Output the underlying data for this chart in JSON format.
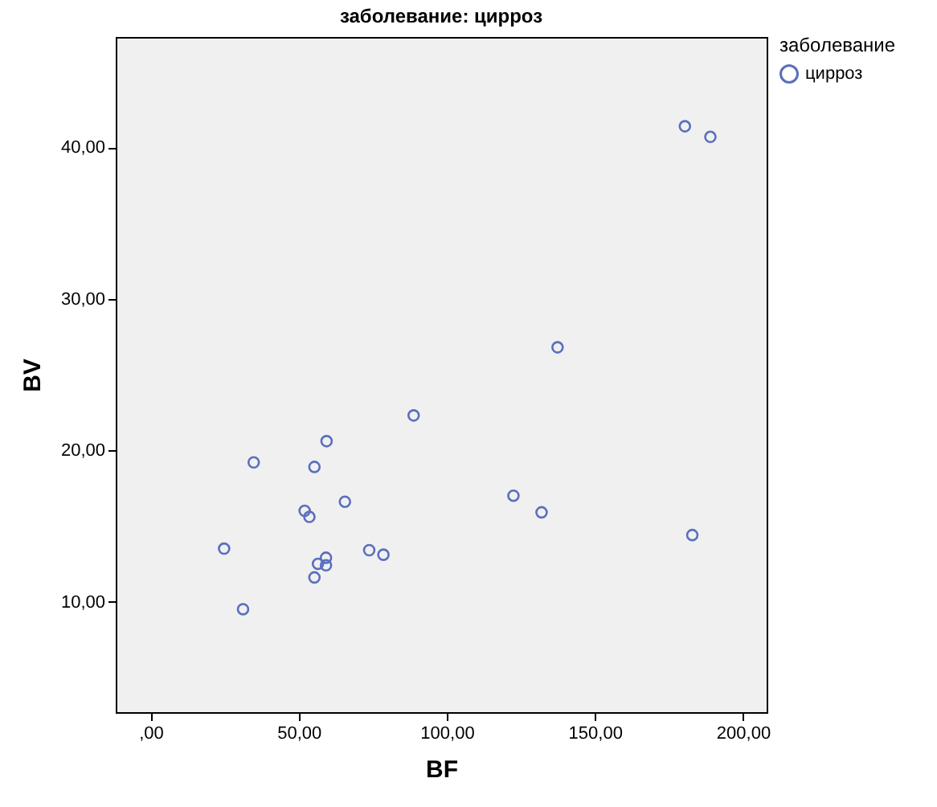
{
  "chart_data": {
    "type": "scatter",
    "title": "заболевание: цирроз",
    "xlabel": "BF",
    "ylabel": "BV",
    "legend_title": "заболевание",
    "legend": "top right",
    "marker": "circle",
    "grid": false,
    "xlim": [
      -11.8,
      208
    ],
    "ylim": [
      2.7,
      47.3
    ],
    "xticks": [
      {
        "value": 0,
        "label": ",00"
      },
      {
        "value": 50,
        "label": "50,00"
      },
      {
        "value": 100,
        "label": "100,00"
      },
      {
        "value": 150,
        "label": "150,00"
      },
      {
        "value": 200,
        "label": "200,00"
      }
    ],
    "yticks": [
      {
        "value": 10,
        "label": "10,00"
      },
      {
        "value": 20,
        "label": "20,00"
      },
      {
        "value": 30,
        "label": "30,00"
      },
      {
        "value": 40,
        "label": "40,00"
      }
    ],
    "series": [
      {
        "name": "цирроз",
        "color": "#5a6fbf",
        "x": [
          88.8,
          59.4,
          34.8,
          55.3,
          65.6,
          52.0,
          53.6,
          24.8,
          73.8,
          78.6,
          59.2,
          56.5,
          59.2,
          55.3,
          31.2,
          180.4,
          189.0,
          122.5,
          132.0,
          137.4,
          182.9
        ],
        "values": [
          22.3,
          20.6,
          19.2,
          18.9,
          16.6,
          16.0,
          15.6,
          13.5,
          13.4,
          13.1,
          12.9,
          12.5,
          12.4,
          11.6,
          9.5,
          41.4,
          40.7,
          17.0,
          15.9,
          26.8,
          14.4
        ]
      }
    ]
  }
}
